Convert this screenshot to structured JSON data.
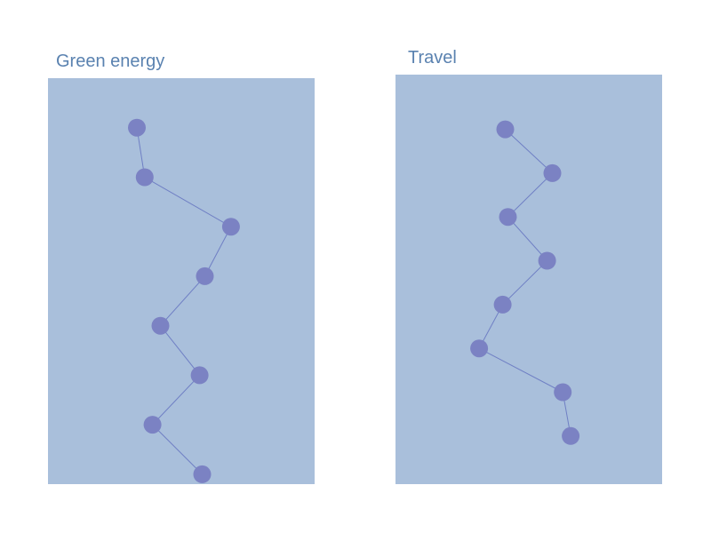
{
  "colors": {
    "panel_background": "#a9bfdb",
    "marker": "#7b82c3",
    "line": "#6f7fc4",
    "title": "#5a82b0"
  },
  "chart_data": [
    {
      "type": "line",
      "title": "Green energy",
      "orientation": "vertical",
      "x": [
        1,
        2,
        3,
        4,
        5,
        6,
        7,
        8
      ],
      "y": [
        0.33,
        0.36,
        0.69,
        0.59,
        0.42,
        0.57,
        0.39,
        0.58
      ],
      "xlim": [
        0,
        8.2
      ],
      "ylim": [
        -0.01,
        1.01
      ],
      "xlabel": "",
      "ylabel": "",
      "grid": false,
      "axes_visible": false,
      "markers": true
    },
    {
      "type": "line",
      "title": "Travel",
      "orientation": "vertical",
      "x": [
        1,
        2,
        3,
        4,
        5,
        6,
        7,
        8
      ],
      "y": [
        0.41,
        0.59,
        0.42,
        0.57,
        0.4,
        0.31,
        0.63,
        0.66
      ],
      "xlim": [
        -0.25,
        9.1
      ],
      "ylim": [
        -0.01,
        1.01
      ],
      "xlabel": "",
      "ylabel": "",
      "grid": false,
      "axes_visible": false,
      "markers": true
    }
  ]
}
